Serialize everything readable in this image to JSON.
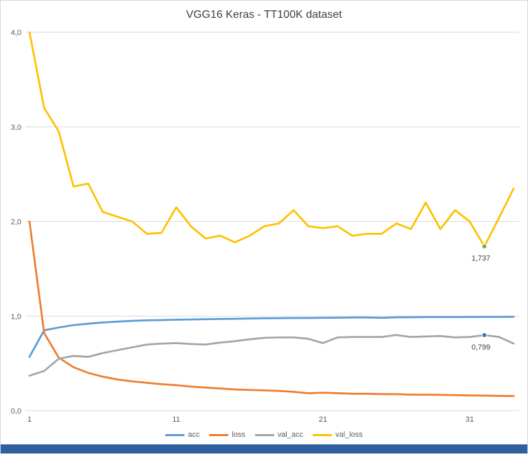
{
  "chart_data": {
    "type": "line",
    "title": "VGG16 Keras - TT100K dataset",
    "xlabel": "",
    "ylabel": "",
    "xlim": [
      1,
      34
    ],
    "ylim": [
      0,
      4
    ],
    "grid": true,
    "legend_position": "bottom",
    "x": [
      1,
      2,
      3,
      4,
      5,
      6,
      7,
      8,
      9,
      10,
      11,
      12,
      13,
      14,
      15,
      16,
      17,
      18,
      19,
      20,
      21,
      22,
      23,
      24,
      25,
      26,
      27,
      28,
      29,
      30,
      31,
      32,
      33,
      34
    ],
    "x_ticks": [
      "1",
      "11",
      "21",
      "31"
    ],
    "y_ticks": [
      "0,0",
      "1,0",
      "2,0",
      "3,0",
      "4,0"
    ],
    "series": [
      {
        "name": "acc",
        "color": "#5B9BD5",
        "values": [
          0.57,
          0.85,
          0.88,
          0.905,
          0.92,
          0.933,
          0.942,
          0.95,
          0.955,
          0.958,
          0.962,
          0.965,
          0.968,
          0.97,
          0.972,
          0.975,
          0.977,
          0.978,
          0.98,
          0.98,
          0.982,
          0.983,
          0.985,
          0.985,
          0.982,
          0.987,
          0.988,
          0.99,
          0.99,
          0.99,
          0.991,
          0.992,
          0.992,
          0.993
        ]
      },
      {
        "name": "loss",
        "color": "#ED7D31",
        "values": [
          2.0,
          0.82,
          0.56,
          0.46,
          0.4,
          0.36,
          0.33,
          0.31,
          0.295,
          0.28,
          0.27,
          0.255,
          0.245,
          0.235,
          0.225,
          0.22,
          0.215,
          0.21,
          0.2,
          0.185,
          0.19,
          0.185,
          0.18,
          0.18,
          0.175,
          0.175,
          0.17,
          0.17,
          0.168,
          0.165,
          0.162,
          0.16,
          0.157,
          0.155
        ]
      },
      {
        "name": "val_acc",
        "color": "#A5A5A5",
        "values": [
          0.37,
          0.42,
          0.55,
          0.58,
          0.57,
          0.61,
          0.64,
          0.67,
          0.7,
          0.71,
          0.715,
          0.705,
          0.7,
          0.72,
          0.735,
          0.755,
          0.77,
          0.775,
          0.775,
          0.76,
          0.715,
          0.775,
          0.78,
          0.78,
          0.78,
          0.8,
          0.78,
          0.785,
          0.79,
          0.775,
          0.78,
          0.799,
          0.78,
          0.71
        ]
      },
      {
        "name": "val_loss",
        "color": "#FFC000",
        "values": [
          4.0,
          3.2,
          2.95,
          2.37,
          2.4,
          2.1,
          2.05,
          2.0,
          1.87,
          1.88,
          2.15,
          1.95,
          1.82,
          1.85,
          1.78,
          1.85,
          1.95,
          1.98,
          2.12,
          1.95,
          1.93,
          1.95,
          1.85,
          1.87,
          1.87,
          1.98,
          1.92,
          2.2,
          1.92,
          2.12,
          2.0,
          1.737,
          2.04,
          2.35
        ]
      }
    ],
    "annotations": [
      {
        "series": "val_loss",
        "x": 32,
        "value": 1.737,
        "label": "1,737",
        "marker_color": "#70AD47"
      },
      {
        "series": "val_acc",
        "x": 32,
        "value": 0.799,
        "label": "0,799",
        "marker_color": "#4472C4"
      }
    ]
  },
  "window": {
    "bottom_bar_color": "#2E5F9E"
  }
}
